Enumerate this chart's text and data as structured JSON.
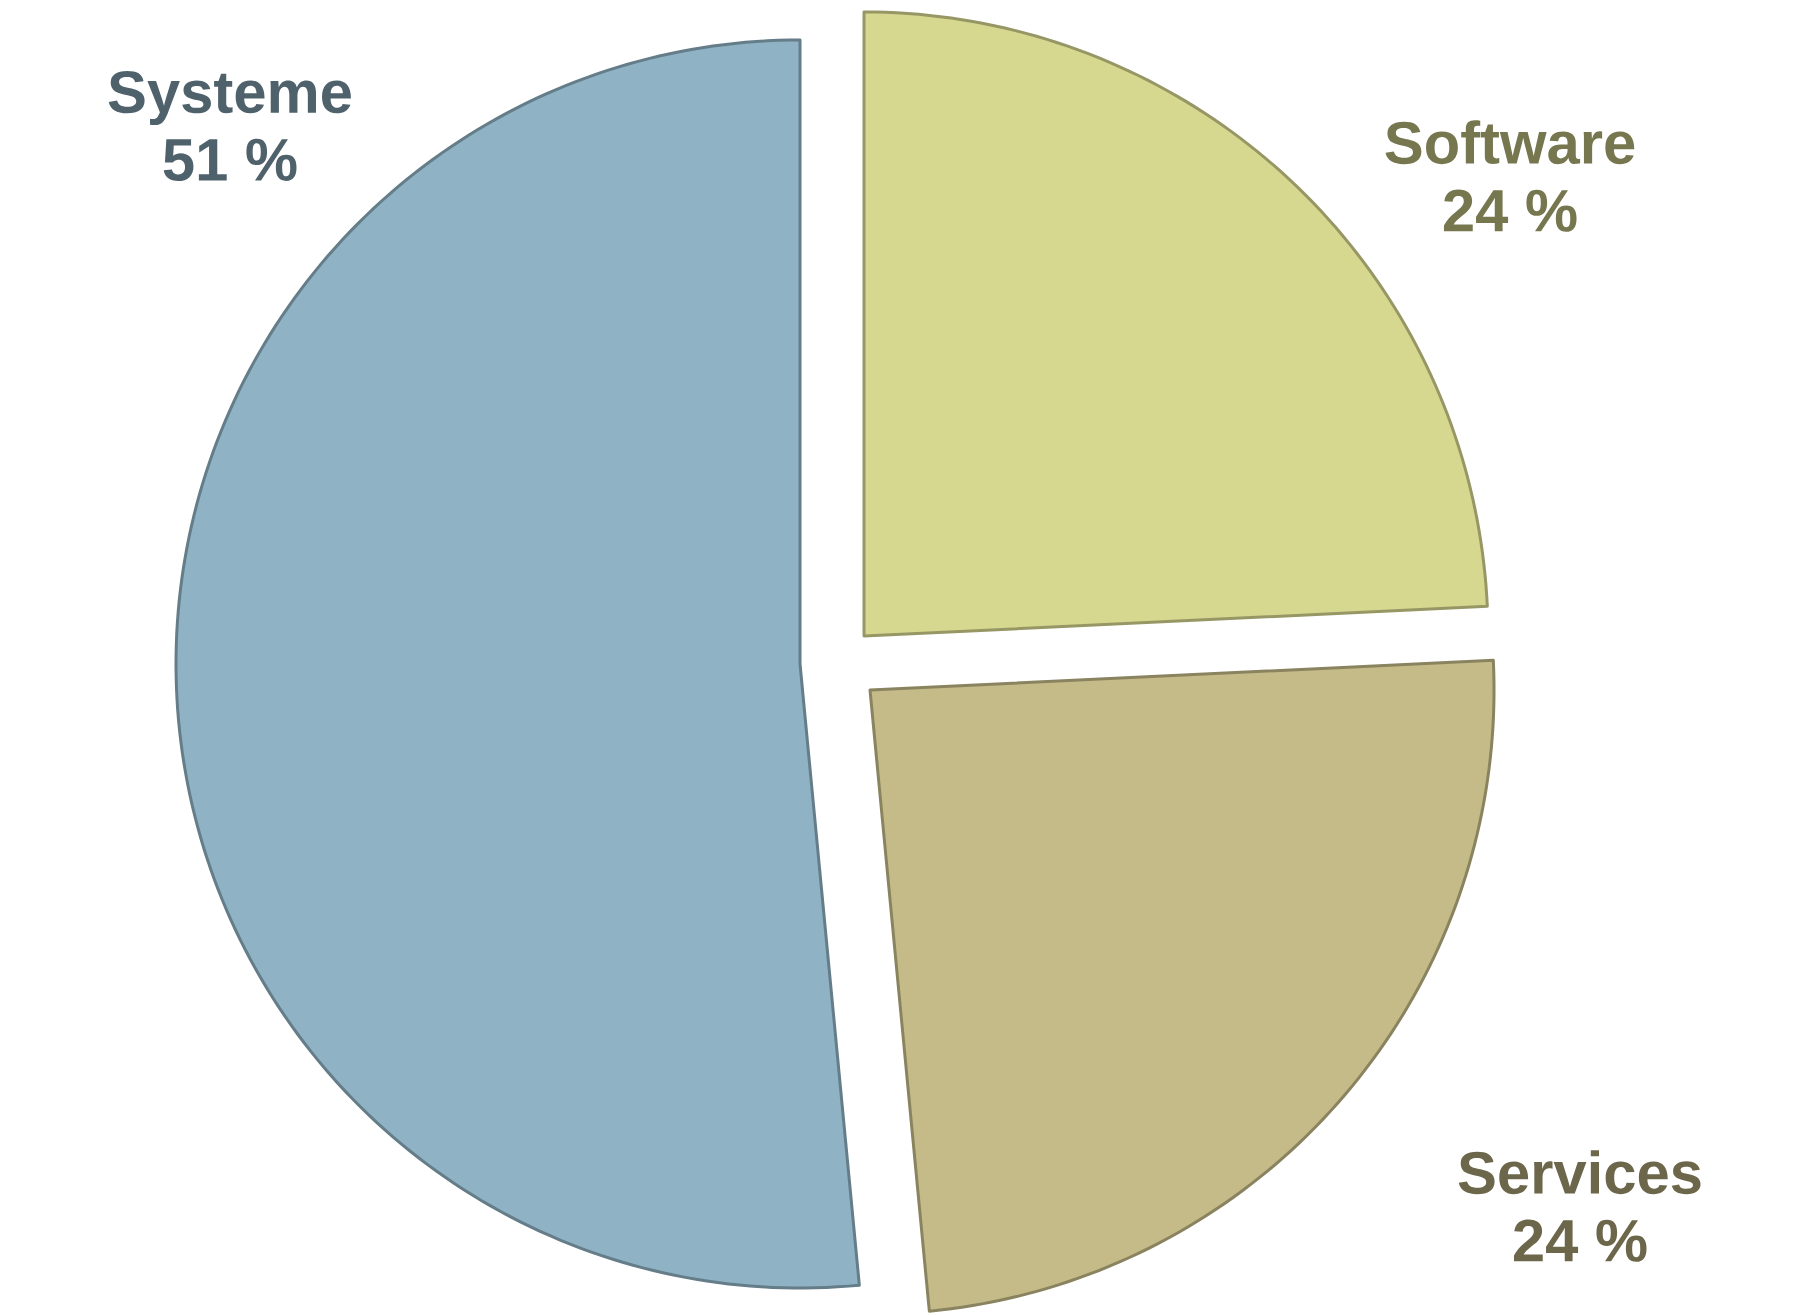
{
  "chart_data": {
    "type": "pie",
    "categories": [
      "Software",
      "Services",
      "Systeme"
    ],
    "values": [
      24,
      24,
      51
    ],
    "value_labels": [
      "24 %",
      "24 %",
      "51 %"
    ],
    "colors": [
      "#d6d890",
      "#c5bb88",
      "#8fb3c4"
    ]
  }
}
